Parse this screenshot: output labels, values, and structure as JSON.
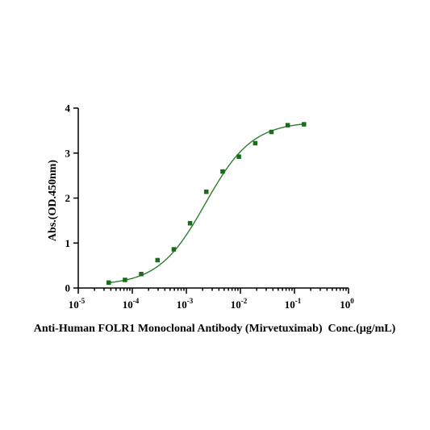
{
  "chart_data": {
    "type": "scatter",
    "title": "",
    "xlabel": "Anti-Human FOLR1 Monoclonal Antibody (Mirvetuximab)  Conc.(μg/mL)",
    "ylabel": "Abs.(OD.450nm)",
    "x_scale": "log10",
    "xlim": [
      1e-05,
      1
    ],
    "ylim": [
      0,
      4
    ],
    "x_ticks": [
      {
        "base": "10",
        "exp": "-5"
      },
      {
        "base": "10",
        "exp": "-4"
      },
      {
        "base": "10",
        "exp": "-3"
      },
      {
        "base": "10",
        "exp": "-2"
      },
      {
        "base": "10",
        "exp": "-1"
      },
      {
        "base": "10",
        "exp": "0"
      }
    ],
    "y_ticks": [
      "0",
      "1",
      "2",
      "3",
      "4"
    ],
    "y_tick_values": [
      0,
      1,
      2,
      3,
      4
    ],
    "grid": false,
    "legend": "none",
    "marker_color": "#1a6b1a",
    "curve_color": "#2e7d2e",
    "curve_fit": {
      "model": "4PL",
      "bottom": 0.06,
      "top": 3.7,
      "ec50": 0.00225,
      "hill": 1.0
    },
    "series": [
      {
        "x": [
          3.66e-05,
          7.32e-05,
          0.000146,
          0.000293,
          0.000586,
          0.00117,
          0.00234,
          0.00469,
          0.00938,
          0.0188,
          0.0375,
          0.075,
          0.15
        ],
        "y": [
          0.12,
          0.18,
          0.31,
          0.62,
          0.86,
          1.44,
          2.14,
          2.59,
          2.92,
          3.22,
          3.47,
          3.62,
          3.64
        ]
      }
    ]
  }
}
